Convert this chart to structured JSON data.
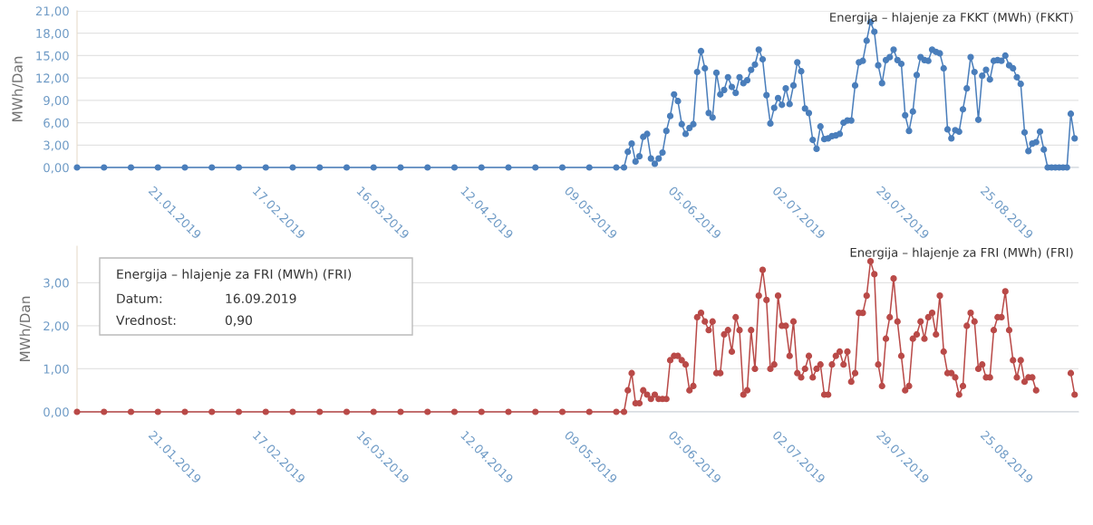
{
  "chart_data": [
    {
      "type": "line",
      "ylabel": "MWh/Dan",
      "grid": "y",
      "legend": "top right",
      "marker": "circle",
      "xlim": [
        "2019-01-01",
        "2019-09-18"
      ],
      "xticks": [
        {
          "value": "2019-01-21",
          "label": "21.01.2019"
        },
        {
          "value": "2019-02-17",
          "label": "17.02.2019"
        },
        {
          "value": "2019-03-16",
          "label": "16.03.2019"
        },
        {
          "value": "2019-04-12",
          "label": "12.04.2019"
        },
        {
          "value": "2019-05-09",
          "label": "09.05.2019"
        },
        {
          "value": "2019-06-05",
          "label": "05.06.2019"
        },
        {
          "value": "2019-07-02",
          "label": "02.07.2019"
        },
        {
          "value": "2019-07-29",
          "label": "29.07.2019"
        },
        {
          "value": "2019-08-25",
          "label": "25.08.2019"
        }
      ],
      "ylim": [
        0,
        21
      ],
      "yticks": [
        {
          "value": 0,
          "label": "0,00"
        },
        {
          "value": 3,
          "label": "3,00"
        },
        {
          "value": 6,
          "label": "6,00"
        },
        {
          "value": 9,
          "label": "9,00"
        },
        {
          "value": 12,
          "label": "12,00"
        },
        {
          "value": 15,
          "label": "15,00"
        },
        {
          "value": 18,
          "label": "18,00"
        },
        {
          "value": 21,
          "label": "21,00"
        }
      ],
      "x": [
        "2019-01-01",
        "2019-01-08",
        "2019-01-15",
        "2019-01-22",
        "2019-01-29",
        "2019-02-05",
        "2019-02-12",
        "2019-02-19",
        "2019-02-26",
        "2019-03-05",
        "2019-03-12",
        "2019-03-19",
        "2019-03-26",
        "2019-04-02",
        "2019-04-09",
        "2019-04-16",
        "2019-04-23",
        "2019-04-30",
        "2019-05-07",
        "2019-05-14",
        "2019-05-21",
        "2019-05-23",
        "2019-05-24",
        "2019-05-25",
        "2019-05-26",
        "2019-05-27",
        "2019-05-28",
        "2019-05-29",
        "2019-05-30",
        "2019-05-31",
        "2019-06-01",
        "2019-06-02",
        "2019-06-03",
        "2019-06-04",
        "2019-06-05",
        "2019-06-06",
        "2019-06-07",
        "2019-06-08",
        "2019-06-09",
        "2019-06-10",
        "2019-06-11",
        "2019-06-12",
        "2019-06-13",
        "2019-06-14",
        "2019-06-15",
        "2019-06-16",
        "2019-06-17",
        "2019-06-18",
        "2019-06-19",
        "2019-06-20",
        "2019-06-21",
        "2019-06-22",
        "2019-06-23",
        "2019-06-24",
        "2019-06-25",
        "2019-06-26",
        "2019-06-27",
        "2019-06-28",
        "2019-06-29",
        "2019-06-30",
        "2019-07-01",
        "2019-07-02",
        "2019-07-03",
        "2019-07-04",
        "2019-07-05",
        "2019-07-06",
        "2019-07-07",
        "2019-07-08",
        "2019-07-09",
        "2019-07-10",
        "2019-07-11",
        "2019-07-12",
        "2019-07-13",
        "2019-07-14",
        "2019-07-15",
        "2019-07-16",
        "2019-07-17",
        "2019-07-18",
        "2019-07-19",
        "2019-07-20",
        "2019-07-21",
        "2019-07-22",
        "2019-07-23",
        "2019-07-24",
        "2019-07-25",
        "2019-07-26",
        "2019-07-27",
        "2019-07-28",
        "2019-07-29",
        "2019-07-30",
        "2019-07-31",
        "2019-08-01",
        "2019-08-02",
        "2019-08-03",
        "2019-08-04",
        "2019-08-05",
        "2019-08-06",
        "2019-08-07",
        "2019-08-08",
        "2019-08-09",
        "2019-08-10",
        "2019-08-11",
        "2019-08-12",
        "2019-08-13",
        "2019-08-14",
        "2019-08-15",
        "2019-08-16",
        "2019-08-17",
        "2019-08-18",
        "2019-08-19",
        "2019-08-20",
        "2019-08-21",
        "2019-08-22",
        "2019-08-23",
        "2019-08-24",
        "2019-08-25",
        "2019-08-26",
        "2019-08-27",
        "2019-08-28",
        "2019-08-29",
        "2019-08-30",
        "2019-08-31",
        "2019-09-01",
        "2019-09-02",
        "2019-09-03",
        "2019-09-04",
        "2019-09-05",
        "2019-09-06",
        "2019-09-07",
        "2019-09-08",
        "2019-09-09",
        "2019-09-10",
        "2019-09-11",
        "2019-09-12",
        "2019-09-13",
        "2019-09-14",
        "2019-09-15",
        "2019-09-16",
        "2019-09-17"
      ],
      "series": [
        {
          "name": "Energija – hlajenje za FKKT (MWh) (FKKT)",
          "color": "#4a7ebb",
          "values": [
            0,
            0,
            0,
            0,
            0,
            0,
            0,
            0,
            0,
            0,
            0,
            0,
            0,
            0,
            0,
            0,
            0,
            0,
            0,
            0,
            0,
            0,
            2.1,
            3.2,
            0.8,
            1.5,
            4.1,
            4.5,
            1.2,
            0.5,
            1.2,
            2.0,
            4.9,
            6.9,
            9.8,
            8.9,
            5.8,
            4.5,
            5.3,
            5.8,
            12.8,
            15.6,
            13.3,
            7.3,
            6.7,
            12.7,
            9.8,
            10.4,
            12.1,
            10.8,
            10.0,
            12.1,
            11.3,
            11.7,
            13.1,
            13.8,
            15.8,
            14.5,
            9.7,
            5.9,
            8.0,
            9.3,
            8.4,
            10.6,
            8.5,
            11.0,
            14.1,
            12.9,
            7.9,
            7.3,
            3.7,
            2.5,
            5.5,
            3.8,
            3.9,
            4.2,
            4.3,
            4.5,
            6.0,
            6.3,
            6.3,
            11.0,
            14.1,
            14.3,
            17.0,
            19.5,
            18.2,
            13.7,
            11.3,
            14.4,
            14.8,
            15.8,
            14.4,
            13.9,
            7.0,
            4.9,
            7.5,
            12.4,
            14.8,
            14.4,
            14.3,
            15.8,
            15.5,
            15.3,
            13.3,
            5.1,
            3.9,
            5.0,
            4.8,
            7.8,
            10.6,
            14.8,
            12.8,
            6.4,
            12.3,
            13.1,
            11.8,
            14.3,
            14.4,
            14.3,
            15.0,
            13.7,
            13.3,
            12.1,
            11.2,
            4.7,
            2.2,
            3.2,
            3.4,
            4.8,
            2.4,
            0,
            0,
            0,
            0,
            0,
            0,
            7.2,
            3.9
          ]
        }
      ]
    },
    {
      "type": "line",
      "ylabel": "MWh/Dan",
      "grid": "y",
      "legend": "top right",
      "marker": "circle",
      "xlim": [
        "2019-01-01",
        "2019-09-18"
      ],
      "xticks": [
        {
          "value": "2019-01-21",
          "label": "21.01.2019"
        },
        {
          "value": "2019-02-17",
          "label": "17.02.2019"
        },
        {
          "value": "2019-03-16",
          "label": "16.03.2019"
        },
        {
          "value": "2019-04-12",
          "label": "12.04.2019"
        },
        {
          "value": "2019-05-09",
          "label": "09.05.2019"
        },
        {
          "value": "2019-06-05",
          "label": "05.06.2019"
        },
        {
          "value": "2019-07-02",
          "label": "02.07.2019"
        },
        {
          "value": "2019-07-29",
          "label": "29.07.2019"
        },
        {
          "value": "2019-08-25",
          "label": "25.08.2019"
        }
      ],
      "ylim": [
        0,
        3.85
      ],
      "yticks": [
        {
          "value": 0,
          "label": "0,00"
        },
        {
          "value": 1,
          "label": "1,00"
        },
        {
          "value": 2,
          "label": "2,00"
        },
        {
          "value": 3,
          "label": "3,00"
        }
      ],
      "x": [
        "2019-01-01",
        "2019-01-08",
        "2019-01-15",
        "2019-01-22",
        "2019-01-29",
        "2019-02-05",
        "2019-02-12",
        "2019-02-19",
        "2019-02-26",
        "2019-03-05",
        "2019-03-12",
        "2019-03-19",
        "2019-03-26",
        "2019-04-02",
        "2019-04-09",
        "2019-04-16",
        "2019-04-23",
        "2019-04-30",
        "2019-05-07",
        "2019-05-14",
        "2019-05-21",
        "2019-05-23",
        "2019-05-24",
        "2019-05-25",
        "2019-05-26",
        "2019-05-27",
        "2019-05-28",
        "2019-05-29",
        "2019-05-30",
        "2019-05-31",
        "2019-06-01",
        "2019-06-02",
        "2019-06-03",
        "2019-06-04",
        "2019-06-05",
        "2019-06-06",
        "2019-06-07",
        "2019-06-08",
        "2019-06-09",
        "2019-06-10",
        "2019-06-11",
        "2019-06-12",
        "2019-06-13",
        "2019-06-14",
        "2019-06-15",
        "2019-06-16",
        "2019-06-17",
        "2019-06-18",
        "2019-06-19",
        "2019-06-20",
        "2019-06-21",
        "2019-06-22",
        "2019-06-23",
        "2019-06-24",
        "2019-06-25",
        "2019-06-26",
        "2019-06-27",
        "2019-06-28",
        "2019-06-29",
        "2019-06-30",
        "2019-07-01",
        "2019-07-02",
        "2019-07-03",
        "2019-07-04",
        "2019-07-05",
        "2019-07-06",
        "2019-07-07",
        "2019-07-08",
        "2019-07-09",
        "2019-07-10",
        "2019-07-11",
        "2019-07-12",
        "2019-07-13",
        "2019-07-14",
        "2019-07-15",
        "2019-07-16",
        "2019-07-17",
        "2019-07-18",
        "2019-07-19",
        "2019-07-20",
        "2019-07-21",
        "2019-07-22",
        "2019-07-23",
        "2019-07-24",
        "2019-07-25",
        "2019-07-26",
        "2019-07-27",
        "2019-07-28",
        "2019-07-29",
        "2019-07-30",
        "2019-07-31",
        "2019-08-01",
        "2019-08-02",
        "2019-08-03",
        "2019-08-04",
        "2019-08-05",
        "2019-08-06",
        "2019-08-07",
        "2019-08-08",
        "2019-08-09",
        "2019-08-10",
        "2019-08-11",
        "2019-08-12",
        "2019-08-13",
        "2019-08-14",
        "2019-08-15",
        "2019-08-16",
        "2019-08-17",
        "2019-08-18",
        "2019-08-19",
        "2019-08-20",
        "2019-08-21",
        "2019-08-22",
        "2019-08-23",
        "2019-08-24",
        "2019-08-25",
        "2019-08-26",
        "2019-08-27",
        "2019-08-28",
        "2019-08-29",
        "2019-08-30",
        "2019-08-31",
        "2019-09-01",
        "2019-09-02",
        "2019-09-03",
        "2019-09-04",
        "2019-09-05",
        "2019-09-06",
        "2019-09-07",
        "2019-09-08",
        "2019-09-09",
        "2019-09-10",
        "2019-09-11",
        "2019-09-12",
        "2019-09-13",
        "2019-09-14",
        "2019-09-15",
        "2019-09-16",
        "2019-09-17"
      ],
      "series": [
        {
          "name": "Energija – hlajenje za FRI (MWh) (FRI)",
          "color": "#b94a48",
          "values": [
            0,
            0,
            0,
            0,
            0,
            0,
            0,
            0,
            0,
            0,
            0,
            0,
            0,
            0,
            0,
            0,
            0,
            0,
            0,
            0,
            0,
            0,
            0.5,
            0.9,
            0.2,
            0.2,
            0.5,
            0.4,
            0.3,
            0.4,
            0.3,
            0.3,
            0.3,
            1.2,
            1.3,
            1.3,
            1.2,
            1.1,
            0.5,
            0.6,
            2.2,
            2.3,
            2.1,
            1.9,
            2.1,
            0.9,
            0.9,
            1.8,
            1.9,
            1.4,
            2.2,
            1.9,
            0.4,
            0.5,
            1.9,
            1.0,
            2.7,
            3.3,
            2.6,
            1.0,
            1.1,
            2.7,
            2.0,
            2.0,
            1.3,
            2.1,
            0.9,
            0.8,
            1.0,
            1.3,
            0.8,
            1.0,
            1.1,
            0.4,
            0.4,
            1.1,
            1.3,
            1.4,
            1.1,
            1.4,
            0.7,
            0.9,
            2.3,
            2.3,
            2.7,
            3.5,
            3.2,
            1.1,
            0.6,
            1.7,
            2.2,
            3.1,
            2.1,
            1.3,
            0.5,
            0.6,
            1.7,
            1.8,
            2.1,
            1.7,
            2.2,
            2.3,
            1.8,
            2.7,
            1.4,
            0.9,
            0.9,
            0.8,
            0.4,
            0.6,
            2.0,
            2.3,
            2.1,
            1.0,
            1.1,
            0.8,
            0.8,
            1.9,
            2.2,
            2.2,
            2.8,
            1.9,
            1.2,
            0.8,
            1.2,
            0.7,
            0.8,
            0.8,
            0.5,
            null,
            null,
            null,
            null,
            null,
            null,
            null,
            null,
            0.9,
            0.4
          ]
        }
      ],
      "annotations": [
        "Energija – hlajenje za FRI (MWh) (FRI)",
        "Datum:",
        "16.09.2019",
        "Vrednost:",
        "0,90"
      ]
    }
  ]
}
